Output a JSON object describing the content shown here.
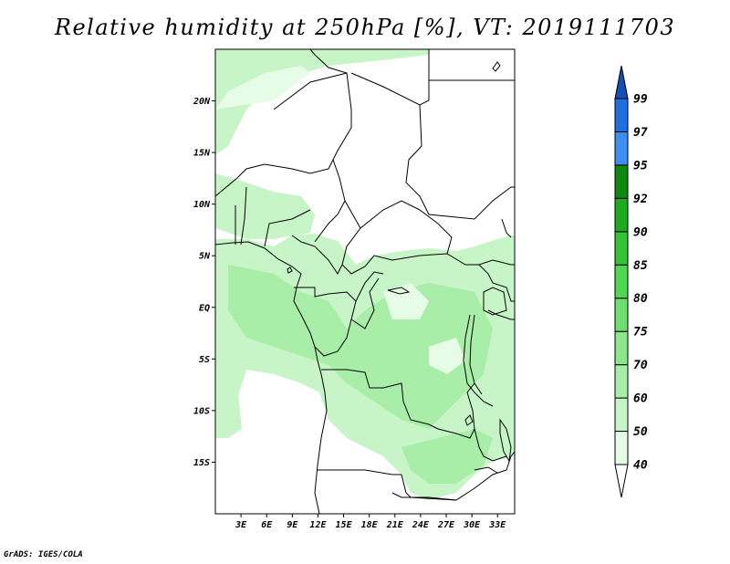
{
  "title": "Relative humidity at 250hPa [%], VT: 2019111703",
  "credit": "GrADS: IGES/COLA",
  "map": {
    "lon_range": [
      0,
      35
    ],
    "lat_range": [
      -20,
      25
    ],
    "lat_ticks": [
      {
        "value": 20,
        "label": "20N"
      },
      {
        "value": 15,
        "label": "15N"
      },
      {
        "value": 10,
        "label": "10N"
      },
      {
        "value": 5,
        "label": "5N"
      },
      {
        "value": 0,
        "label": "EQ"
      },
      {
        "value": -5,
        "label": "5S"
      },
      {
        "value": -10,
        "label": "10S"
      },
      {
        "value": -15,
        "label": "15S"
      }
    ],
    "lon_ticks": [
      {
        "value": 3,
        "label": "3E"
      },
      {
        "value": 6,
        "label": "6E"
      },
      {
        "value": 9,
        "label": "9E"
      },
      {
        "value": 12,
        "label": "12E"
      },
      {
        "value": 15,
        "label": "15E"
      },
      {
        "value": 18,
        "label": "18E"
      },
      {
        "value": 21,
        "label": "21E"
      },
      {
        "value": 24,
        "label": "24E"
      },
      {
        "value": 27,
        "label": "27E"
      },
      {
        "value": 30,
        "label": "30E"
      },
      {
        "value": 33,
        "label": "33E"
      }
    ]
  },
  "colorbar": {
    "levels": [
      "40",
      "50",
      "60",
      "70",
      "75",
      "80",
      "85",
      "90",
      "92",
      "95",
      "97",
      "99"
    ],
    "colors": [
      "#ffffff",
      "#e6fce6",
      "#c8f5c8",
      "#a8eea8",
      "#8ce68c",
      "#6ede6e",
      "#50d650",
      "#34c434",
      "#1eaa1e",
      "#0f8a0f",
      "#3c8ff0",
      "#1f6fe0",
      "#1450b4"
    ]
  },
  "fields": {
    "shade_light": "#c8f5c8",
    "shade_mid": "#a8eea8",
    "shade_pale": "#e6fce6",
    "boundary_color": "#000000"
  }
}
